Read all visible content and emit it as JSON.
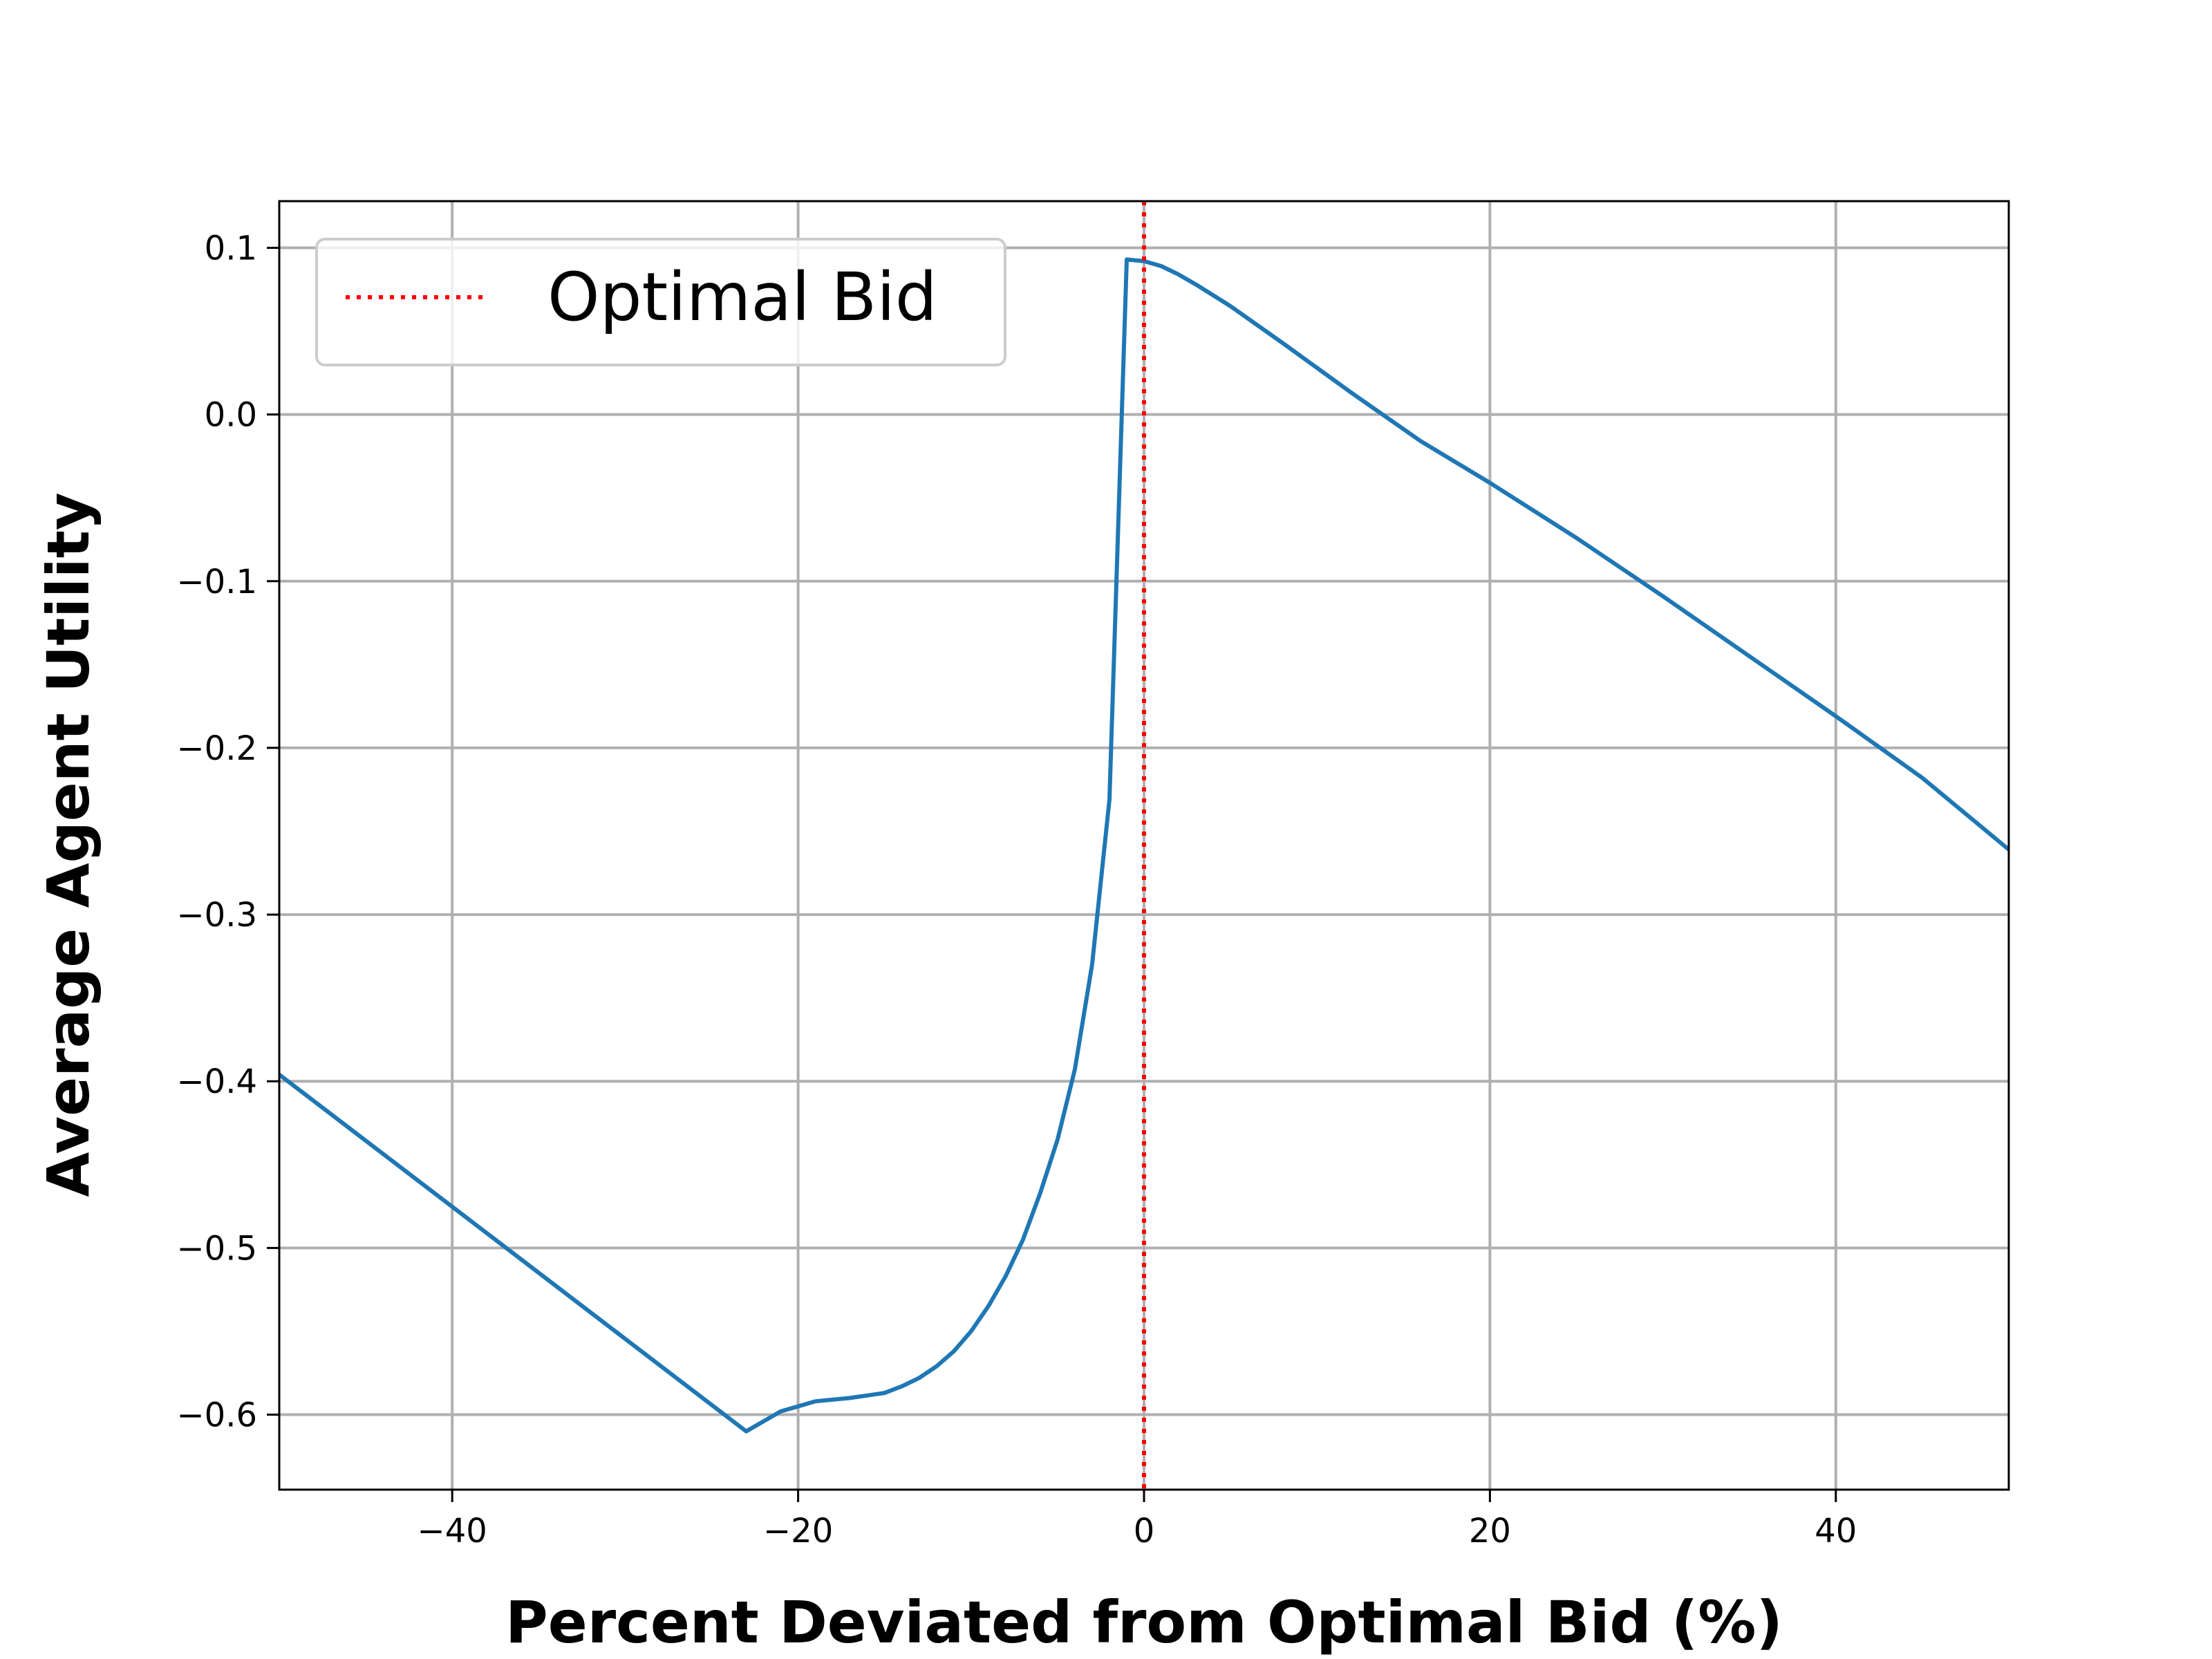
{
  "chart_data": {
    "type": "line",
    "title": "",
    "xlabel": "Percent Deviated from Optimal Bid (%)",
    "ylabel": "Average Agent Utility",
    "xlim": [
      -50,
      50
    ],
    "ylim": [
      -0.645,
      0.128
    ],
    "xticks": [
      -40,
      -20,
      0,
      20,
      40
    ],
    "xtick_labels": [
      "−40",
      "−20",
      "0",
      "20",
      "40"
    ],
    "yticks": [
      0.1,
      0.0,
      -0.1,
      -0.2,
      -0.3,
      -0.4,
      -0.5,
      -0.6
    ],
    "ytick_labels": [
      "0.1",
      "0.0",
      "−0.1",
      "−0.2",
      "−0.3",
      "−0.4",
      "−0.5",
      "−0.6"
    ],
    "grid": true,
    "legend_position": "upper-left",
    "series": [
      {
        "name": "",
        "color": "#1f77b4",
        "x": [
          -50,
          -23,
          -21,
          -19,
          -17,
          -15,
          -14,
          -13,
          -12,
          -11,
          -10,
          -9,
          -8,
          -7,
          -6,
          -5,
          -4,
          -3,
          -2,
          -1,
          0,
          1,
          2,
          3,
          5,
          8,
          12,
          16,
          20,
          25,
          30,
          35,
          40,
          45,
          50
        ],
        "y": [
          -0.396,
          -0.61,
          -0.598,
          -0.592,
          -0.59,
          -0.587,
          -0.583,
          -0.578,
          -0.571,
          -0.562,
          -0.55,
          -0.535,
          -0.517,
          -0.495,
          -0.467,
          -0.435,
          -0.393,
          -0.33,
          -0.231,
          0.093,
          0.092,
          0.089,
          0.084,
          0.078,
          0.065,
          0.043,
          0.013,
          -0.016,
          -0.041,
          -0.074,
          -0.109,
          -0.145,
          -0.181,
          -0.218,
          -0.261
        ]
      },
      {
        "name": "Optimal Bid",
        "color": "#ff0000",
        "style": "dotted",
        "type": "vline",
        "x": 0
      }
    ]
  }
}
